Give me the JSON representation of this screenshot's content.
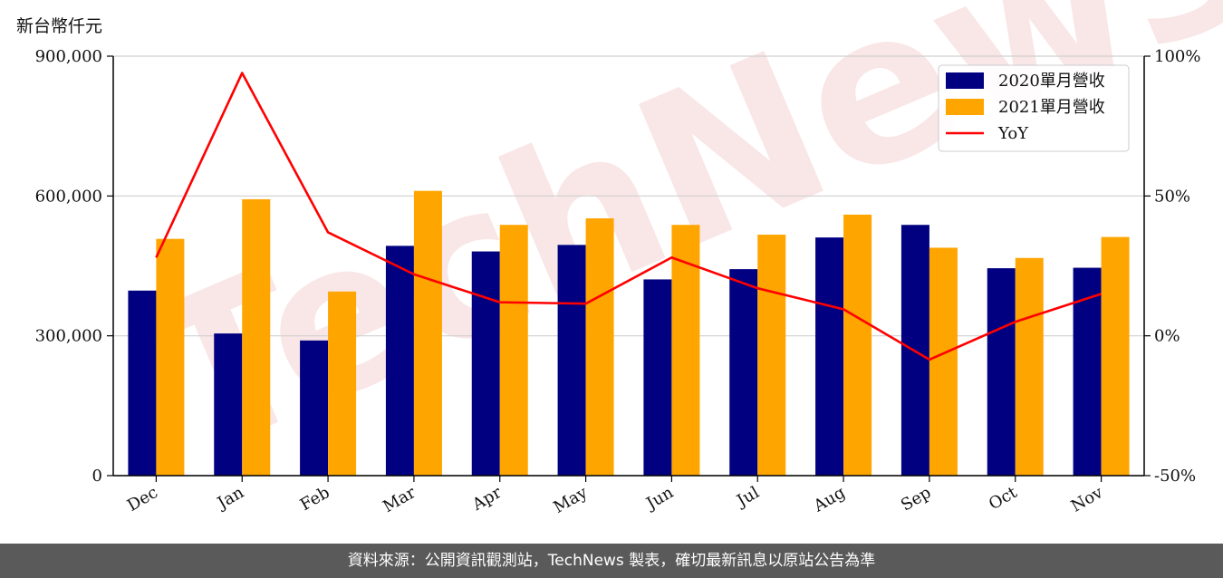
{
  "unit_label": "新台幣仟元",
  "footer_text": "資料來源：公開資訊觀測站，TechNews 製表，確切最新訊息以原站公告為準",
  "watermark": "TechNews",
  "colors": {
    "bar2020": "#000080",
    "bar2021": "#FFA500",
    "yoy": "#FF0000",
    "grid": "#d0d0d0"
  },
  "chart_data": {
    "type": "bar",
    "categories": [
      "Dec",
      "Jan",
      "Feb",
      "Mar",
      "Apr",
      "May",
      "Jun",
      "Jul",
      "Aug",
      "Sep",
      "Oct",
      "Nov"
    ],
    "series": [
      {
        "name": "2020單月營收",
        "values": [
          397000,
          305000,
          290000,
          493000,
          481000,
          495000,
          421000,
          443000,
          511000,
          538000,
          445000,
          446000
        ]
      },
      {
        "name": "2021單月營收",
        "values": [
          508000,
          593000,
          395000,
          611000,
          538000,
          552000,
          538000,
          517000,
          560000,
          489000,
          467000,
          512000
        ]
      }
    ],
    "line_series": {
      "name": "YoY",
      "axis": "right",
      "values": [
        28,
        94,
        37,
        22,
        12,
        11.5,
        28,
        17,
        9.5,
        -8.5,
        5,
        15
      ]
    },
    "ylim": [
      0,
      900000
    ],
    "y_ticks": [
      "0",
      "300,000",
      "600,000",
      "900,000"
    ],
    "y2lim": [
      -50,
      100
    ],
    "y2_ticks": [
      "-50%",
      "0%",
      "50%",
      "100%"
    ],
    "grid": true,
    "legend_position": "top-right"
  }
}
